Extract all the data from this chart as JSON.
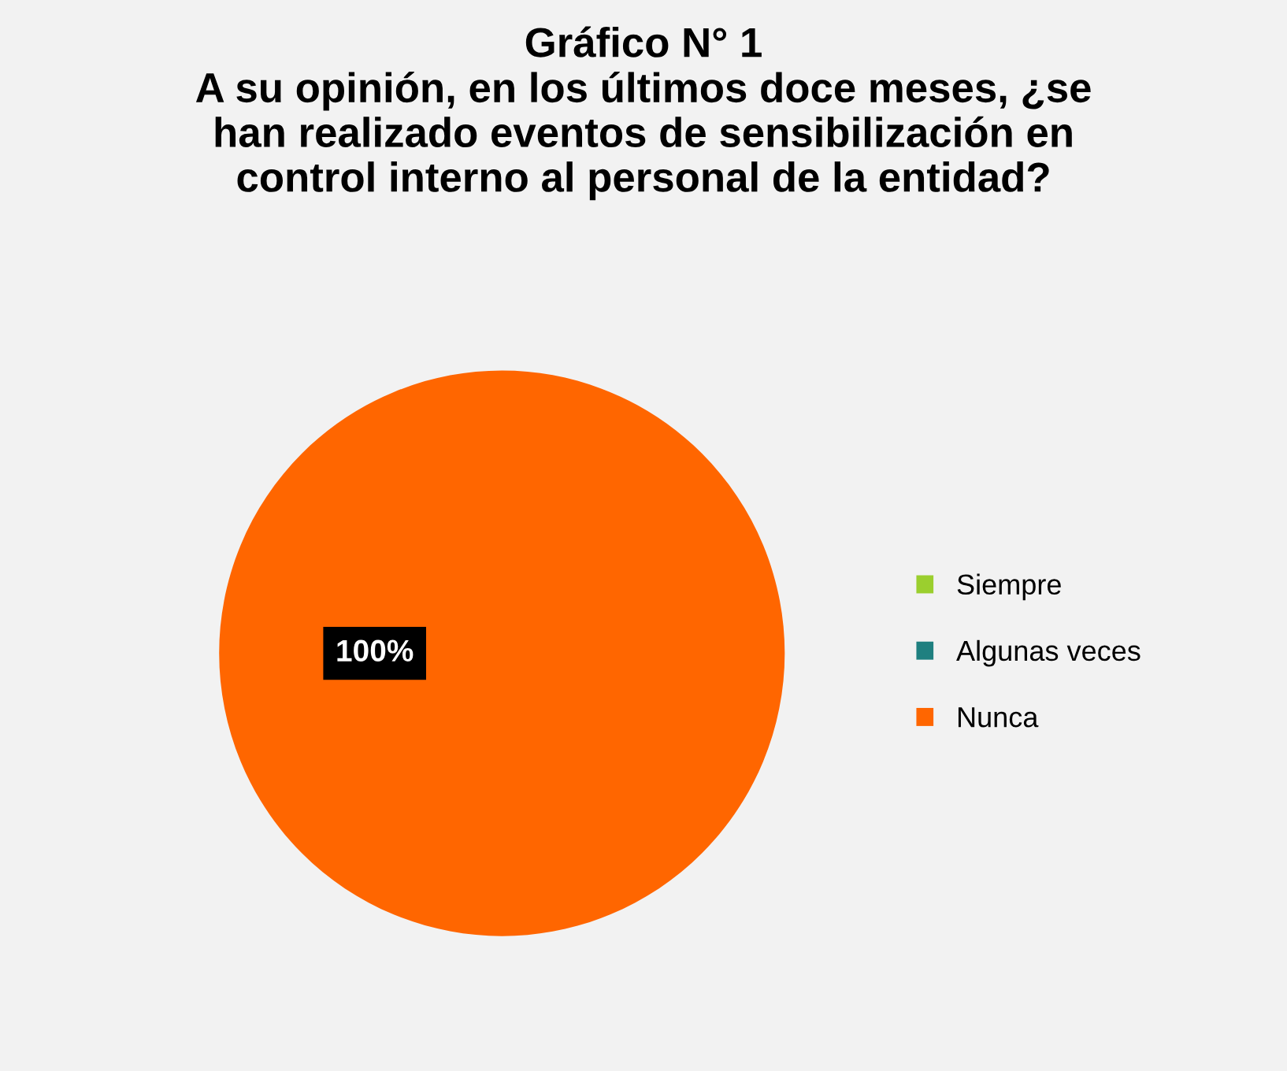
{
  "chart_data": {
    "type": "pie",
    "title": "Gráfico N° 1\nA su opinión, en los últimos doce meses, ¿se\nhan realizado eventos de sensibilización en\ncontrol interno al personal de la entidad?",
    "categories": [
      "Siempre",
      "Algunas veces",
      "Nunca"
    ],
    "values": [
      0,
      0,
      100
    ],
    "colors": [
      "#9bcf2e",
      "#1f8080",
      "#ff6600"
    ],
    "value_labels": [
      null,
      null,
      "100%"
    ],
    "legend": "right"
  }
}
